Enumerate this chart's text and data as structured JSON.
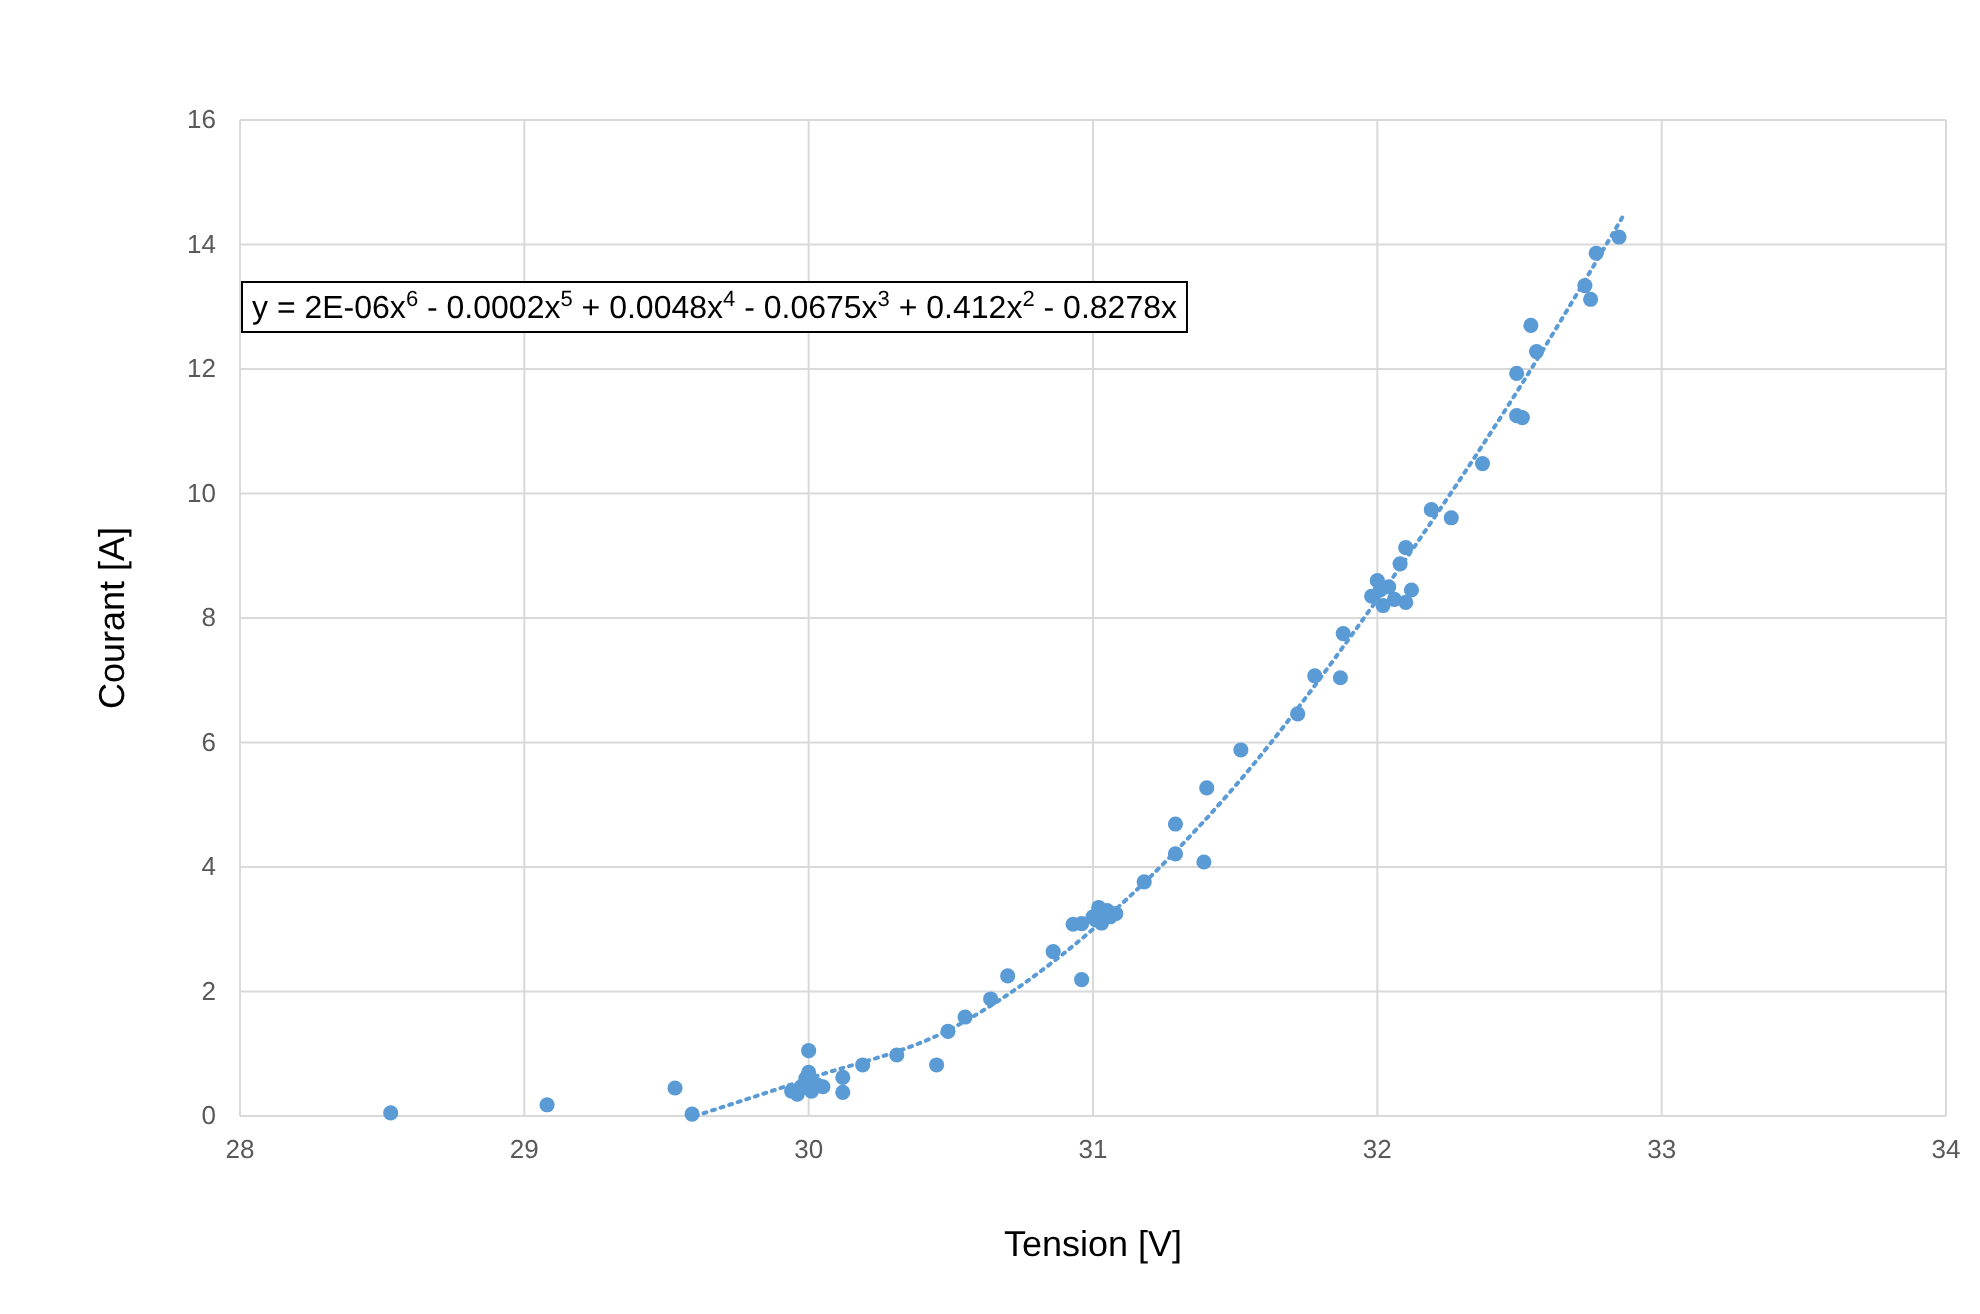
{
  "chart_data": {
    "type": "scatter",
    "xlabel": "Tension [V]",
    "ylabel": "Courant [A]",
    "xlim": [
      28,
      34
    ],
    "xticks": [
      28,
      29,
      30,
      31,
      32,
      33,
      34
    ],
    "ylim": [
      0,
      16
    ],
    "yticks": [
      0,
      2,
      4,
      6,
      8,
      10,
      12,
      14,
      16
    ],
    "grid": true,
    "marker": "circle",
    "annotations": [
      "y = 2E-06x$^{6}$ - 0.0002x$^{5}$ + 0.0048x$^{4}$ - 0.0675x$^{3}$ + 0.412x$^{2}$ - 0.8278x"
    ],
    "series": [
      {
        "color": "#5b9bd5",
        "x": [
          28.53,
          29.08,
          29.53,
          29.59,
          30.0,
          29.97,
          29.99,
          29.96,
          30.01,
          30.03,
          29.94,
          30.0,
          30.05,
          30.12,
          30.12,
          30.19,
          30.31,
          30.45,
          30.49,
          30.55,
          30.64,
          30.7,
          30.86,
          30.93,
          30.96,
          30.96,
          31.0,
          31.02,
          31.03,
          31.05,
          31.01,
          31.06,
          31.08,
          31.18,
          31.29,
          31.39,
          31.29,
          31.4,
          31.52,
          31.72,
          31.78,
          31.87,
          31.88,
          31.98,
          32.0,
          32.02,
          32.04,
          32.01,
          32.06,
          32.1,
          32.12,
          32.08,
          32.1,
          32.19,
          32.26,
          32.37,
          32.49,
          32.51,
          32.49,
          32.56,
          32.54,
          32.73,
          32.75,
          32.77,
          32.85
        ],
        "values": [
          0.05,
          0.18,
          0.45,
          0.03,
          1.05,
          0.45,
          0.6,
          0.35,
          0.4,
          0.5,
          0.4,
          0.7,
          0.47,
          0.62,
          0.38,
          0.82,
          0.98,
          0.82,
          1.36,
          1.59,
          1.88,
          2.25,
          2.64,
          3.08,
          3.09,
          2.19,
          3.2,
          3.35,
          3.1,
          3.3,
          3.15,
          3.2,
          3.25,
          3.76,
          4.21,
          4.08,
          4.69,
          5.27,
          5.88,
          6.46,
          7.07,
          7.04,
          7.75,
          8.35,
          8.6,
          8.2,
          8.5,
          8.45,
          8.3,
          8.25,
          8.45,
          8.87,
          9.13,
          9.74,
          9.61,
          10.48,
          11.25,
          11.22,
          11.93,
          12.28,
          12.7,
          13.34,
          13.12,
          13.86,
          14.12
        ]
      },
      {
        "type": "line",
        "color": "#5b9bd5",
        "line_style": "dotted",
        "marker": "none",
        "x": [
          29.6,
          30.0,
          30.5,
          31.0,
          31.5,
          32.0,
          32.5,
          32.87
        ],
        "values": [
          0,
          0.6,
          1.4,
          3.0,
          5.3,
          8.3,
          11.7,
          14.5
        ]
      }
    ]
  }
}
